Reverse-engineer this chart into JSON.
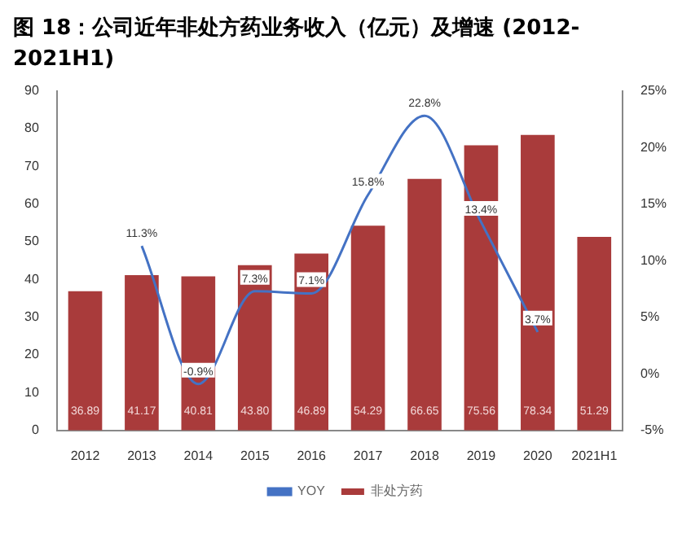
{
  "chart_data": {
    "type": "bar",
    "title": "图 18：公司近年非处方药业务收入（亿元）及增速 (2012-2021H1)",
    "categories": [
      "2012",
      "2013",
      "2014",
      "2015",
      "2016",
      "2017",
      "2018",
      "2019",
      "2020",
      "2021H1"
    ],
    "series": [
      {
        "name": "非处方药",
        "color": "#a93b3b",
        "values": [
          36.89,
          41.17,
          40.81,
          43.8,
          46.89,
          54.29,
          66.65,
          75.56,
          78.34,
          51.29
        ],
        "value_labels": [
          "36.89",
          "41.17",
          "40.81",
          "43.80",
          "46.89",
          "54.29",
          "66.65",
          "75.56",
          "78.34",
          "51.29"
        ]
      },
      {
        "name": "YOY",
        "type": "line",
        "axis": "y2",
        "color": "#4472c4",
        "values": [
          null,
          11.3,
          -0.9,
          7.3,
          7.1,
          15.8,
          22.8,
          13.4,
          3.7,
          null
        ],
        "value_labels": [
          null,
          "11.3%",
          "-0.9%",
          "7.3%",
          "7.1%",
          "15.8%",
          "22.8%",
          "13.4%",
          "3.7%",
          null
        ]
      }
    ],
    "ylim": [
      0,
      90
    ],
    "yticks": [
      0,
      10,
      20,
      30,
      40,
      50,
      60,
      70,
      80,
      90
    ],
    "y2lim": [
      -5,
      25
    ],
    "y2ticks": [
      {
        "value": -5,
        "label": "-5%"
      },
      {
        "value": 0,
        "label": "0%"
      },
      {
        "value": 5,
        "label": "5%"
      },
      {
        "value": 10,
        "label": "10%"
      },
      {
        "value": 15,
        "label": "15%"
      },
      {
        "value": 20,
        "label": "20%"
      },
      {
        "value": 25,
        "label": "25%"
      }
    ],
    "grid": false,
    "legend": "bottom",
    "marker": "none"
  }
}
